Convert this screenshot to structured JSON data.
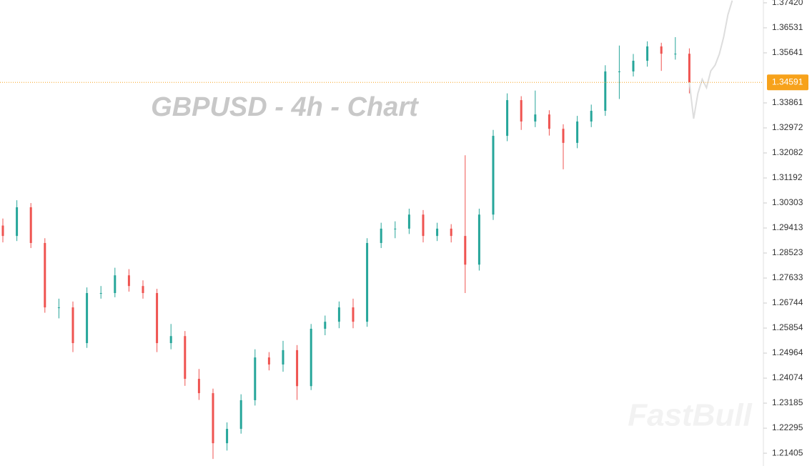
{
  "chart_data": {
    "type": "candlestick",
    "title": "GBPUSD - 4h - Chart",
    "watermark": "FastBull",
    "up_color": "#26a69a",
    "down_color": "#ef5350",
    "open": [
      1.295,
      1.2913,
      1.3015,
      1.2888,
      1.2659,
      1.2659,
      1.2532,
      1.271,
      1.271,
      1.2773,
      1.2735,
      1.271,
      1.2532,
      1.2557,
      1.2405,
      1.2354,
      1.2176,
      1.2227,
      1.2329,
      1.2481,
      1.2456,
      1.2507,
      1.2379,
      1.2583,
      1.2608,
      1.2659,
      1.2608,
      1.2888,
      1.2939,
      1.2939,
      1.2989,
      1.2913,
      1.2939,
      1.2913,
      1.2811,
      1.2989,
      1.3269,
      1.3396,
      1.332,
      1.3345,
      1.3294,
      1.3244,
      1.332,
      1.3358,
      1.3498,
      1.3498,
      1.3536,
      1.3587,
      1.3561,
      1.3561
    ],
    "high": [
      1.2975,
      1.304,
      1.303,
      1.2905,
      1.269,
      1.268,
      1.273,
      1.2735,
      1.28,
      1.2795,
      1.2755,
      1.2725,
      1.26,
      1.2575,
      1.244,
      1.237,
      1.225,
      1.235,
      1.251,
      1.25,
      1.254,
      1.2525,
      1.26,
      1.263,
      1.268,
      1.269,
      1.2905,
      1.296,
      1.2965,
      1.301,
      1.3005,
      1.296,
      1.2955,
      1.32,
      1.301,
      1.329,
      1.342,
      1.341,
      1.343,
      1.336,
      1.331,
      1.334,
      1.338,
      1.352,
      1.359,
      1.356,
      1.3605,
      1.36,
      1.362,
      1.358
    ],
    "low": [
      1.289,
      1.2895,
      1.287,
      1.264,
      1.262,
      1.25,
      1.2515,
      1.269,
      1.2695,
      1.2715,
      1.269,
      1.25,
      1.251,
      1.238,
      1.233,
      1.212,
      1.215,
      1.221,
      1.231,
      1.2435,
      1.243,
      1.233,
      1.2365,
      1.256,
      1.2585,
      1.2585,
      1.259,
      1.287,
      1.2905,
      1.292,
      1.289,
      1.2895,
      1.289,
      1.271,
      1.279,
      1.297,
      1.325,
      1.329,
      1.33,
      1.327,
      1.315,
      1.3225,
      1.33,
      1.334,
      1.34,
      1.348,
      1.3515,
      1.35,
      1.354,
      1.342
    ],
    "close": [
      1.2913,
      1.3015,
      1.2888,
      1.2659,
      1.2659,
      1.2532,
      1.271,
      1.271,
      1.2773,
      1.2735,
      1.271,
      1.2532,
      1.2557,
      1.2405,
      1.2354,
      1.2176,
      1.2227,
      1.2329,
      1.2481,
      1.2456,
      1.2507,
      1.2379,
      1.2583,
      1.2608,
      1.2659,
      1.2608,
      1.2888,
      1.2939,
      1.2939,
      1.2989,
      1.2913,
      1.2939,
      1.2913,
      1.2811,
      1.2989,
      1.3269,
      1.3396,
      1.332,
      1.3345,
      1.3294,
      1.3244,
      1.332,
      1.3358,
      1.3498,
      1.3498,
      1.3536,
      1.3587,
      1.3561,
      1.3561,
      1.3459
    ],
    "projection": {
      "color": "#dddddd",
      "values": [
        1.3459,
        1.333,
        1.342,
        1.347,
        1.344,
        1.35,
        1.352,
        1.356,
        1.362,
        1.37,
        1.375
      ]
    },
    "current_price": 1.34591,
    "current_price_color": "#f7a21b",
    "ylim": [
      1.2095,
      1.3752
    ],
    "yticks": [
      {
        "value": 1.3742,
        "label": "1.37420"
      },
      1.36531,
      1.35641,
      1.33861,
      1.32972,
      1.32082,
      1.31192,
      1.30303,
      1.29413,
      1.28523,
      1.27633,
      1.26744,
      1.25854,
      1.24964,
      1.24074,
      1.23185,
      1.22295,
      1.21405
    ]
  }
}
